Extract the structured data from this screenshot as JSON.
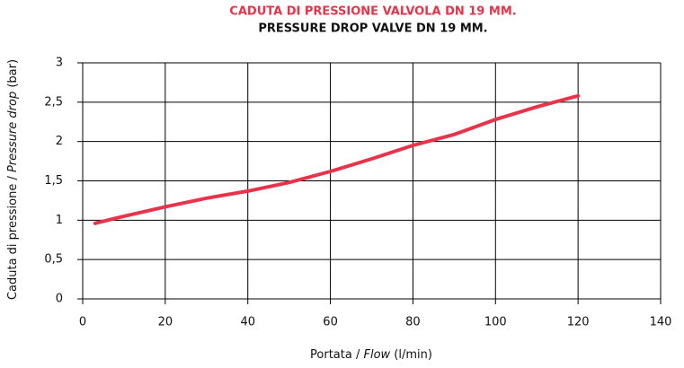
{
  "chart_data": {
    "type": "line",
    "title": "CADUTA DI PRESSIONE VALVOLA DN 19 MM.",
    "subtitle": "PRESSURE DROP VALVE DN 19 MM.",
    "xlabel": [
      "Portata / ",
      "Flow",
      " (l/min)"
    ],
    "ylabel": [
      "Caduta di pressione / ",
      "Pressure drop",
      " (bar)"
    ],
    "x": [
      3,
      10,
      20,
      30,
      40,
      50,
      60,
      70,
      80,
      90,
      100,
      110,
      120
    ],
    "series": [
      {
        "name": "Pressure drop",
        "color": "#e8344b",
        "values": [
          0.96,
          1.05,
          1.17,
          1.28,
          1.37,
          1.48,
          1.62,
          1.78,
          1.95,
          2.09,
          2.28,
          2.44,
          2.58
        ]
      }
    ],
    "xlim": [
      0,
      140
    ],
    "xticks": [
      0,
      20,
      40,
      60,
      80,
      100,
      120,
      140
    ],
    "ylim": [
      0,
      3
    ],
    "yticks": [
      0,
      {
        "value": 0.5,
        "label": "0,5"
      },
      1,
      {
        "value": 1.5,
        "label": "1,5"
      },
      2,
      {
        "value": 2.5,
        "label": "2,5"
      },
      3
    ],
    "grid": true
  }
}
